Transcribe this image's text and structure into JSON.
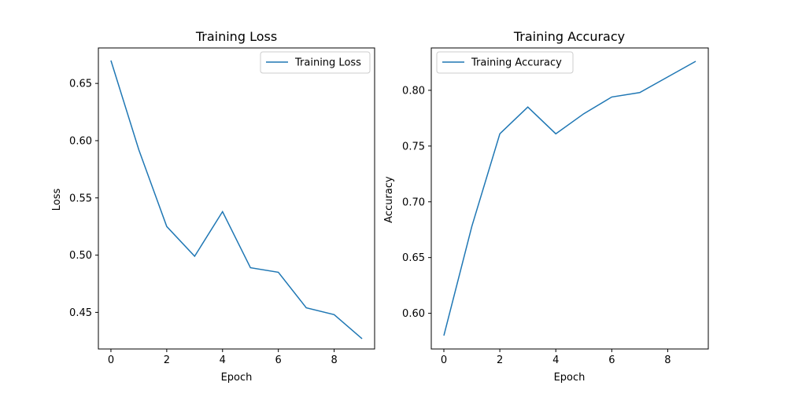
{
  "chart_data": [
    {
      "type": "line",
      "title": "Training Loss",
      "xlabel": "Epoch",
      "ylabel": "Loss",
      "xlim": [
        -0.45,
        9.45
      ],
      "ylim": [
        0.418,
        0.681
      ],
      "xticks": [
        0,
        2,
        4,
        6,
        8
      ],
      "yticks": [
        0.45,
        0.5,
        0.55,
        0.6,
        0.65
      ],
      "ytick_labels": [
        "0.45",
        "0.50",
        "0.55",
        "0.60",
        "0.65"
      ],
      "legend_position": "upper right",
      "series": [
        {
          "name": "Training Loss",
          "color": "#1f77b4",
          "x": [
            0,
            1,
            2,
            3,
            4,
            5,
            6,
            7,
            8,
            9
          ],
          "values": [
            0.67,
            0.592,
            0.525,
            0.499,
            0.538,
            0.489,
            0.485,
            0.454,
            0.448,
            0.427
          ]
        }
      ]
    },
    {
      "type": "line",
      "title": "Training Accuracy",
      "xlabel": "Epoch",
      "ylabel": "Accuracy",
      "xlim": [
        -0.45,
        9.45
      ],
      "ylim": [
        0.568,
        0.838
      ],
      "xticks": [
        0,
        2,
        4,
        6,
        8
      ],
      "yticks": [
        0.6,
        0.65,
        0.7,
        0.75,
        0.8
      ],
      "ytick_labels": [
        "0.60",
        "0.65",
        "0.70",
        "0.75",
        "0.80"
      ],
      "legend_position": "upper left",
      "series": [
        {
          "name": "Training Accuracy",
          "color": "#1f77b4",
          "x": [
            0,
            1,
            2,
            3,
            4,
            5,
            6,
            7,
            8,
            9
          ],
          "values": [
            0.58,
            0.678,
            0.761,
            0.785,
            0.761,
            0.779,
            0.794,
            0.798,
            0.812,
            0.826
          ]
        }
      ]
    }
  ]
}
